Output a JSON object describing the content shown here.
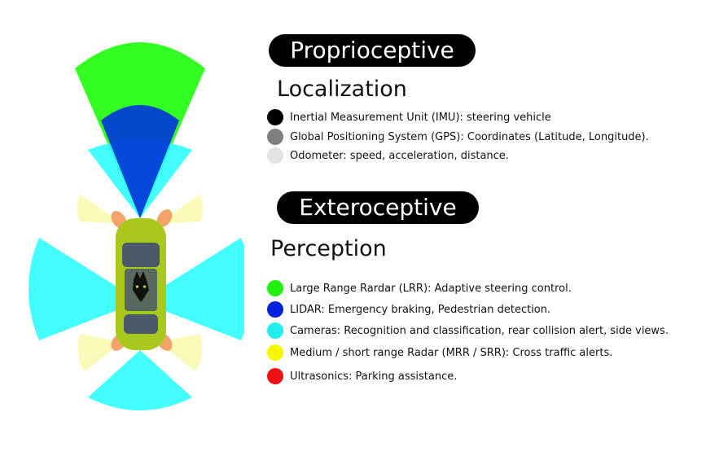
{
  "proprioceptive": {
    "header": "Proprioceptive",
    "section_title": "Localization",
    "items": [
      {
        "label": "Inertial Measurement Unit (IMU): steering vehicle",
        "color": "#000000"
      },
      {
        "label": "Global Positioning System  (GPS): Coordinates (Latitude, Longitude).",
        "color": "#7f7f7f"
      },
      {
        "label": "Odometer: speed, acceleration, distance.",
        "color": "#e3e3e3"
      }
    ]
  },
  "exteroceptive": {
    "header": "Exteroceptive",
    "section_title": "Perception",
    "items": [
      {
        "label": "Large Range Rardar (LRR): Adaptive steering control.",
        "color": "#22ee11"
      },
      {
        "label": "LIDAR: Emergency braking, Pedestrian detection.",
        "color": "#0022dd"
      },
      {
        "label": "Cameras: Recognition and classification, rear collision alert, side views.",
        "color": "#22eeee"
      },
      {
        "label": " Medium / short range Radar (MRR / SRR): Cross traffic alerts.",
        "color": "#f7f700"
      },
      {
        "label": "Ultrasonics: Parking assistance.",
        "color": "#ee1111"
      }
    ]
  },
  "diagram": {
    "sensor_colors": {
      "lrr": "#33ff22",
      "lidar": "#0033dd",
      "camera": "#22ffff",
      "radar": "#f8f8a0",
      "ultrasonic": "#f4a46a",
      "car_body": "#a8c81e",
      "car_glass": "#4a5868"
    },
    "logo": "lynx-head-logo"
  }
}
